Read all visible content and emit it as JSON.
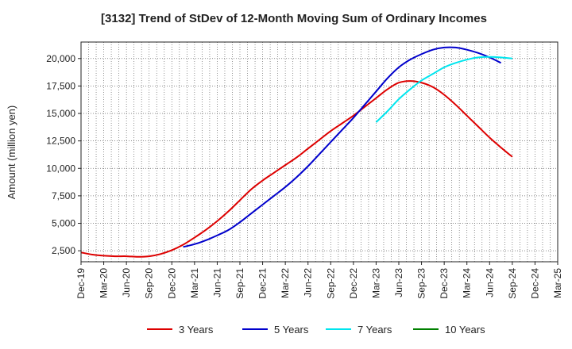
{
  "chart_data": {
    "type": "line",
    "title": "[3132]  Trend of StDev of 12-Month Moving Sum of Ordinary Incomes",
    "xlabel": "",
    "ylabel": "Amount (million yen)",
    "ylim": [
      1500,
      21500
    ],
    "yticks": [
      2500,
      5000,
      7500,
      10000,
      12500,
      15000,
      17500,
      20000
    ],
    "ytick_labels": [
      "2,500",
      "5,000",
      "7,500",
      "10,000",
      "12,500",
      "15,000",
      "17,500",
      "20,000"
    ],
    "xtick_labels": [
      "Dec-19",
      "Mar-20",
      "Jun-20",
      "Sep-20",
      "Dec-20",
      "Mar-21",
      "Jun-21",
      "Sep-21",
      "Dec-21",
      "Mar-22",
      "Jun-22",
      "Sep-22",
      "Dec-22",
      "Mar-23",
      "Jun-23",
      "Sep-23",
      "Dec-23",
      "Mar-24",
      "Jun-24",
      "Sep-24",
      "Dec-24",
      "Mar-25"
    ],
    "grid": true,
    "series": [
      {
        "name": "3 Years",
        "color": "#dd0000",
        "points": [
          [
            0,
            2350
          ],
          [
            1,
            2150
          ],
          [
            2,
            2050
          ],
          [
            3,
            2000
          ],
          [
            4,
            2000
          ],
          [
            5,
            1950
          ],
          [
            6,
            2000
          ],
          [
            7,
            2200
          ],
          [
            8,
            2550
          ],
          [
            9,
            3050
          ],
          [
            10,
            3700
          ],
          [
            11,
            4400
          ],
          [
            12,
            5200
          ],
          [
            13,
            6100
          ],
          [
            14,
            7100
          ],
          [
            15,
            8100
          ],
          [
            16,
            8900
          ],
          [
            17,
            9600
          ],
          [
            18,
            10300
          ],
          [
            19,
            11000
          ],
          [
            20,
            11800
          ],
          [
            21,
            12600
          ],
          [
            22,
            13400
          ],
          [
            23,
            14100
          ],
          [
            24,
            14800
          ],
          [
            25,
            15600
          ],
          [
            26,
            16400
          ],
          [
            27,
            17200
          ],
          [
            28,
            17800
          ],
          [
            29,
            17950
          ],
          [
            30,
            17800
          ],
          [
            31,
            17400
          ],
          [
            32,
            16700
          ],
          [
            33,
            15800
          ],
          [
            34,
            14800
          ],
          [
            35,
            13800
          ],
          [
            36,
            12800
          ],
          [
            37,
            11900
          ],
          [
            38,
            11050
          ]
        ]
      },
      {
        "name": "5 Years",
        "color": "#0000cc",
        "points": [
          [
            9,
            2850
          ],
          [
            10,
            3100
          ],
          [
            11,
            3450
          ],
          [
            12,
            3900
          ],
          [
            13,
            4400
          ],
          [
            14,
            5100
          ],
          [
            15,
            5900
          ],
          [
            16,
            6700
          ],
          [
            17,
            7500
          ],
          [
            18,
            8300
          ],
          [
            19,
            9200
          ],
          [
            20,
            10200
          ],
          [
            21,
            11300
          ],
          [
            22,
            12400
          ],
          [
            23,
            13500
          ],
          [
            24,
            14600
          ],
          [
            25,
            15800
          ],
          [
            26,
            17000
          ],
          [
            27,
            18200
          ],
          [
            28,
            19200
          ],
          [
            29,
            19900
          ],
          [
            30,
            20400
          ],
          [
            31,
            20800
          ],
          [
            32,
            21000
          ],
          [
            33,
            21000
          ],
          [
            34,
            20800
          ],
          [
            35,
            20500
          ],
          [
            36,
            20100
          ],
          [
            37,
            19600
          ]
        ]
      },
      {
        "name": "7 Years",
        "color": "#00e5ee",
        "points": [
          [
            26,
            14200
          ],
          [
            27,
            15200
          ],
          [
            28,
            16300
          ],
          [
            29,
            17200
          ],
          [
            30,
            18000
          ],
          [
            31,
            18600
          ],
          [
            32,
            19200
          ],
          [
            33,
            19600
          ],
          [
            34,
            19900
          ],
          [
            35,
            20100
          ],
          [
            36,
            20150
          ],
          [
            37,
            20100
          ],
          [
            38,
            20000
          ]
        ]
      },
      {
        "name": "10 Years",
        "color": "#008000",
        "points": []
      }
    ]
  }
}
